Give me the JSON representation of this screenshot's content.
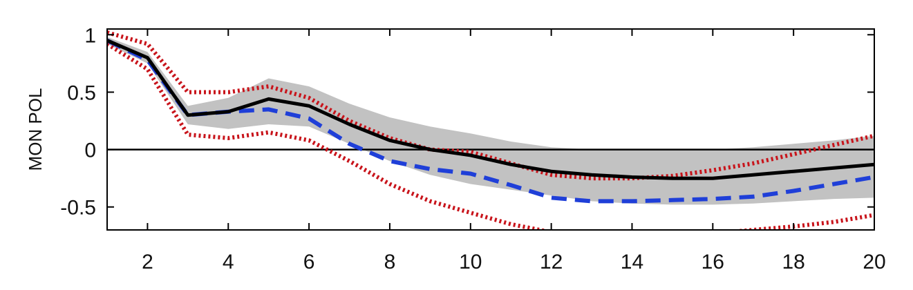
{
  "chart_data": {
    "type": "line",
    "title": "",
    "xlabel": "",
    "ylabel": "MON POL",
    "xlim": [
      1,
      20
    ],
    "ylim": [
      -0.7,
      1.05
    ],
    "xticks": [
      2,
      4,
      6,
      8,
      10,
      12,
      14,
      16,
      18,
      20
    ],
    "xtick_labels": [
      "2",
      "4",
      "6",
      "8",
      "10",
      "12",
      "14",
      "16",
      "18",
      "20"
    ],
    "yticks": [
      1,
      0.5,
      0,
      -0.5
    ],
    "ytick_labels": [
      "1",
      "0.5",
      "0",
      "-0.5"
    ],
    "grid": false,
    "zero_line": 0,
    "colors": {
      "band": "#c2c2c2",
      "median": "#000000",
      "alternative": "#1f3fd8",
      "bounds": "#c8141b"
    },
    "x": [
      1,
      2,
      3,
      4,
      5,
      6,
      7,
      8,
      9,
      10,
      11,
      12,
      13,
      14,
      15,
      16,
      17,
      18,
      19,
      20
    ],
    "band": {
      "upper": [
        0.98,
        0.85,
        0.38,
        0.45,
        0.62,
        0.55,
        0.4,
        0.28,
        0.2,
        0.14,
        0.07,
        0.02,
        0.0,
        0.0,
        0.0,
        0.0,
        0.02,
        0.05,
        0.08,
        0.12
      ],
      "lower": [
        0.92,
        0.75,
        0.22,
        0.18,
        0.22,
        0.2,
        0.05,
        -0.1,
        -0.22,
        -0.3,
        -0.35,
        -0.4,
        -0.45,
        -0.47,
        -0.48,
        -0.48,
        -0.47,
        -0.45,
        -0.43,
        -0.42
      ]
    },
    "series": [
      {
        "style": "solid",
        "values": [
          0.95,
          0.8,
          0.3,
          0.33,
          0.44,
          0.38,
          0.22,
          0.08,
          0.0,
          -0.05,
          -0.13,
          -0.19,
          -0.22,
          -0.24,
          -0.25,
          -0.25,
          -0.22,
          -0.19,
          -0.16,
          -0.13
        ]
      },
      {
        "style": "dashed",
        "values": [
          0.95,
          0.78,
          0.3,
          0.33,
          0.35,
          0.27,
          0.05,
          -0.1,
          -0.17,
          -0.21,
          -0.31,
          -0.42,
          -0.45,
          -0.45,
          -0.44,
          -0.43,
          -0.41,
          -0.36,
          -0.3,
          -0.24
        ]
      },
      {
        "style": "dotted",
        "values": [
          1.02,
          0.92,
          0.5,
          0.5,
          0.55,
          0.45,
          0.25,
          0.1,
          0.0,
          -0.02,
          -0.12,
          -0.22,
          -0.25,
          -0.25,
          -0.23,
          -0.18,
          -0.12,
          -0.04,
          0.04,
          0.12
        ]
      },
      {
        "style": "dotted",
        "values": [
          0.92,
          0.7,
          0.13,
          0.1,
          0.15,
          0.08,
          -0.1,
          -0.3,
          -0.45,
          -0.55,
          -0.65,
          -0.72,
          -0.74,
          -0.74,
          -0.74,
          -0.73,
          -0.7,
          -0.67,
          -0.63,
          -0.57
        ]
      }
    ]
  }
}
